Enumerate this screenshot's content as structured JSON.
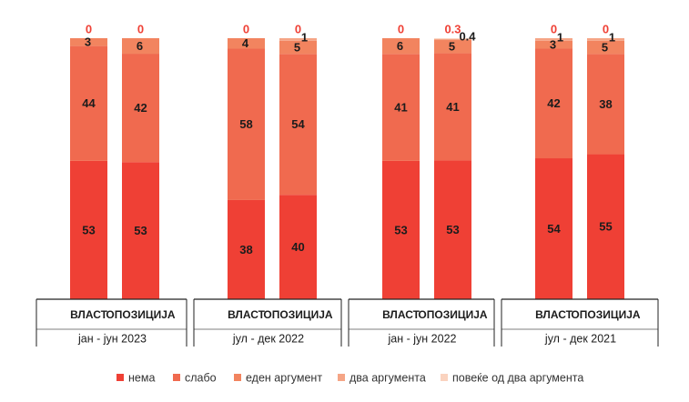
{
  "chart_data": {
    "type": "bar",
    "stacked": true,
    "series_names": [
      "нема",
      "слабо",
      "еден аргумент",
      "два аргумента",
      "повеќе од два аргумента"
    ],
    "colors": [
      "#ef4035",
      "#f06a4f",
      "#f2845f",
      "#f5a586",
      "#fad3bf"
    ],
    "label_color": "#ef4035",
    "groups": [
      {
        "period": "јан - јун 2023",
        "bars": [
          {
            "category": "ВЛАСТ",
            "values": [
              53,
              44,
              3,
              0,
              0
            ],
            "labels": [
              "53",
              "44",
              "3",
              "",
              "0"
            ]
          },
          {
            "category": "ОПОЗИЦИЈА",
            "values": [
              53,
              42,
              6,
              0,
              0
            ],
            "labels": [
              "53",
              "42",
              "6",
              "",
              "0"
            ]
          }
        ]
      },
      {
        "period": "јул - дек 2022",
        "bars": [
          {
            "category": "ВЛАСТ",
            "values": [
              38,
              58,
              4,
              0,
              0
            ],
            "labels": [
              "38",
              "58",
              "4",
              "",
              "0"
            ]
          },
          {
            "category": "ОПОЗИЦИЈА",
            "values": [
              40,
              54,
              5,
              1,
              0
            ],
            "labels": [
              "40",
              "54",
              "5",
              "1",
              "0"
            ]
          }
        ]
      },
      {
        "period": "јан - јун 2022",
        "bars": [
          {
            "category": "ВЛАСТ",
            "values": [
              53,
              41,
              6,
              0,
              0
            ],
            "labels": [
              "53",
              "41",
              "6",
              "",
              "0"
            ]
          },
          {
            "category": "ОПОЗИЦИЈА",
            "values": [
              53,
              41,
              5,
              0.4,
              0.3
            ],
            "labels": [
              "53",
              "41",
              "5",
              "0.4",
              "0.3"
            ]
          }
        ]
      },
      {
        "period": "јул - дек 2021",
        "bars": [
          {
            "category": "ВЛАСТ",
            "values": [
              54,
              42,
              3,
              1,
              0
            ],
            "labels": [
              "54",
              "42",
              "3",
              "1",
              "0"
            ]
          },
          {
            "category": "ОПОЗИЦИЈА",
            "values": [
              55,
              38,
              5,
              1,
              0
            ],
            "labels": [
              "55",
              "38",
              "5",
              "1",
              "0"
            ]
          }
        ]
      }
    ],
    "ylim": [
      0,
      100
    ],
    "legend_position": "bottom",
    "grid": false
  }
}
